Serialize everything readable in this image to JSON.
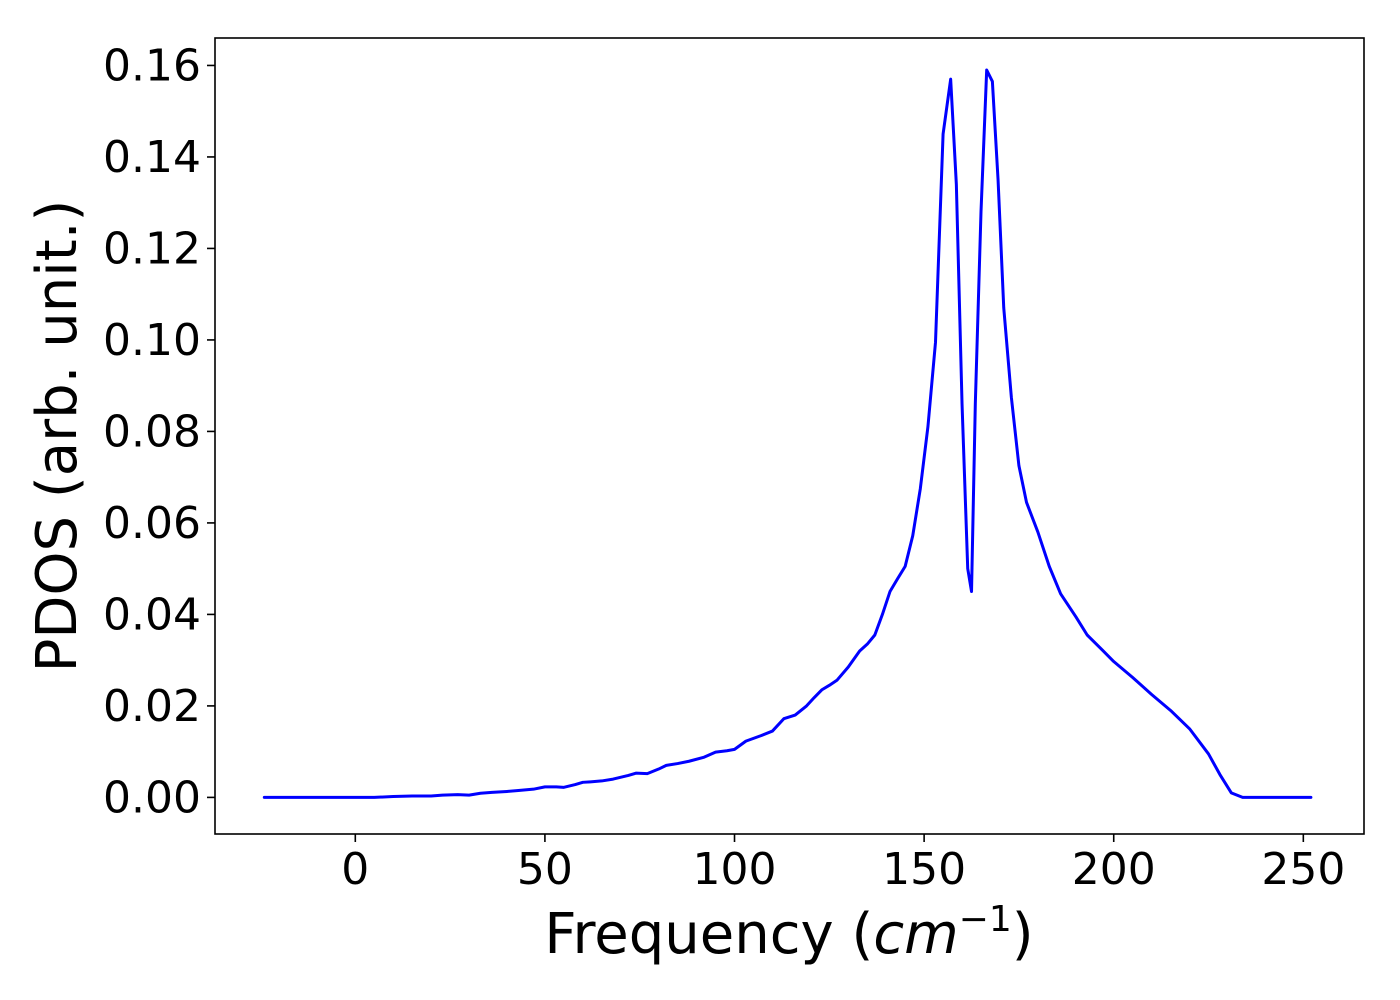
{
  "chart_data": {
    "type": "line",
    "title": "",
    "xlabel": "Frequency (",
    "xlabel_math": "cm",
    "xlabel_sup": "−1",
    "xlabel_close": ")",
    "ylabel": "PDOS (arb. unit.)",
    "xlim": [
      -37,
      266
    ],
    "ylim": [
      -0.008,
      0.166
    ],
    "xticks": [
      0,
      50,
      100,
      150,
      200,
      250
    ],
    "xtick_labels": [
      "0",
      "50",
      "100",
      "150",
      "200",
      "250"
    ],
    "yticks": [
      0.0,
      0.02,
      0.04,
      0.06,
      0.08,
      0.1,
      0.12,
      0.14,
      0.16
    ],
    "ytick_labels": [
      "0.00",
      "0.02",
      "0.04",
      "0.06",
      "0.08",
      "0.10",
      "0.12",
      "0.14",
      "0.16"
    ],
    "grid": false,
    "legend": "none",
    "series": [
      {
        "color": "#0000ff",
        "x": [
          -24,
          0,
          5,
          10,
          15,
          20,
          23,
          27,
          30,
          33,
          36,
          40,
          43,
          47,
          50,
          53,
          55,
          58,
          60,
          62,
          65,
          68,
          72,
          74,
          77,
          80,
          82,
          85,
          88,
          92,
          95,
          98,
          100,
          103,
          107,
          110,
          113,
          116,
          119,
          121,
          123,
          125,
          127,
          130,
          133,
          135,
          137,
          139,
          141,
          143,
          145,
          147,
          149,
          151,
          153,
          155,
          157,
          158.5,
          160,
          161.5,
          162.5,
          163.5,
          165,
          166.5,
          168,
          169.5,
          171,
          173,
          175,
          177,
          180,
          183,
          186,
          190,
          193,
          197,
          200,
          205,
          210,
          215,
          220,
          225,
          228,
          231,
          234,
          240,
          252
        ],
        "y": [
          0.0,
          0.0,
          0.0,
          0.0002,
          0.0003,
          0.0003,
          0.0005,
          0.0006,
          0.0005,
          0.0009,
          0.0011,
          0.0013,
          0.0015,
          0.0018,
          0.0023,
          0.0023,
          0.0022,
          0.0028,
          0.0033,
          0.0034,
          0.0036,
          0.004,
          0.0048,
          0.0053,
          0.0052,
          0.0062,
          0.007,
          0.0074,
          0.0079,
          0.0088,
          0.0099,
          0.0102,
          0.0105,
          0.0123,
          0.0135,
          0.0145,
          0.0172,
          0.018,
          0.02,
          0.0218,
          0.0235,
          0.0245,
          0.0256,
          0.0285,
          0.032,
          0.0335,
          0.0355,
          0.04,
          0.045,
          0.0478,
          0.0505,
          0.0572,
          0.0675,
          0.081,
          0.0995,
          0.145,
          0.157,
          0.134,
          0.086,
          0.05,
          0.045,
          0.086,
          0.128,
          0.159,
          0.1565,
          0.135,
          0.107,
          0.0875,
          0.0725,
          0.0645,
          0.058,
          0.0505,
          0.0445,
          0.0395,
          0.0355,
          0.0322,
          0.0297,
          0.0262,
          0.0225,
          0.019,
          0.015,
          0.0095,
          0.005,
          0.001,
          0.0,
          0.0,
          0.0
        ]
      }
    ]
  }
}
